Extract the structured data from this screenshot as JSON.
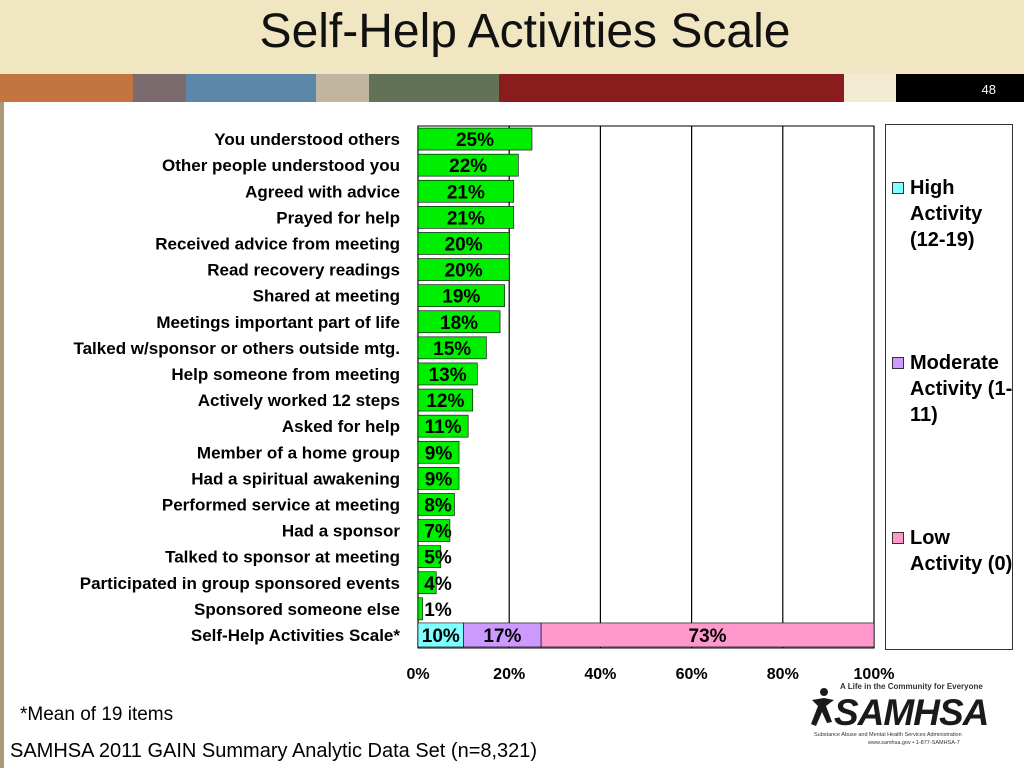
{
  "slide": {
    "title": "Self-Help Activities Scale",
    "number": "48",
    "footnote": "*Mean of 19 items",
    "source": "SAMHSA 2011 GAIN Summary Analytic Data Set (n=8,321)",
    "logo": {
      "tagline": "A Life in the Community for Everyone",
      "wordmark": "SAMHSA",
      "subtitle": "Substance Abuse and Mental Health Services Administration",
      "url": "www.samhsa.gov • 1-877-SAMHSA-7"
    },
    "strip_colors": [
      "#c4743f",
      "#7b6a6e",
      "#5c87a8",
      "#c1b59f",
      "#617257",
      "#8b1c1e",
      "#f3ead2",
      "#000000"
    ]
  },
  "legend": [
    {
      "label": "High Activity (12-19)",
      "color": "#80ffff"
    },
    {
      "label": "Moderate Activity (1-11)",
      "color": "#cc99ff"
    },
    {
      "label": "Low Activity (0)",
      "color": "#ff99cc"
    }
  ],
  "chart_data": {
    "type": "bar",
    "orientation": "horizontal",
    "categories": [
      "You understood others",
      "Other people understood you",
      "Agreed with advice",
      "Prayed for help",
      "Received advice from meeting",
      "Read recovery readings",
      "Shared at meeting",
      "Meetings important part of life",
      "Talked w/sponsor or others outside mtg.",
      "Help someone from meeting",
      "Actively worked 12 steps",
      "Asked for help",
      "Member of a home group",
      "Had a spiritual awakening",
      "Performed service at meeting",
      "Had a sponsor",
      "Talked to sponsor at meeting",
      "Participated in group sponsored events",
      "Sponsored someone else"
    ],
    "values": [
      25,
      22,
      21,
      21,
      20,
      20,
      19,
      18,
      15,
      13,
      12,
      11,
      9,
      9,
      8,
      7,
      5,
      4,
      1
    ],
    "value_labels": [
      "25%",
      "22%",
      "21%",
      "21%",
      "20%",
      "20%",
      "19%",
      "18%",
      "15%",
      "13%",
      "12%",
      "11%",
      "9%",
      "9%",
      "8%",
      "7%",
      "5%",
      "4%",
      "1%"
    ],
    "bar_color": "#00ee00",
    "scale_row": {
      "category": "Self-Help Activities Scale*",
      "segments": [
        {
          "value": 10,
          "label": "10%",
          "color": "#80ffff"
        },
        {
          "value": 17,
          "label": "17%",
          "color": "#cc99ff"
        },
        {
          "value": 73,
          "label": "73%",
          "color": "#ff99cc"
        }
      ]
    },
    "x_ticks": [
      "0%",
      "20%",
      "40%",
      "60%",
      "80%",
      "100%"
    ],
    "xlim": [
      0,
      100
    ],
    "grid": true
  }
}
